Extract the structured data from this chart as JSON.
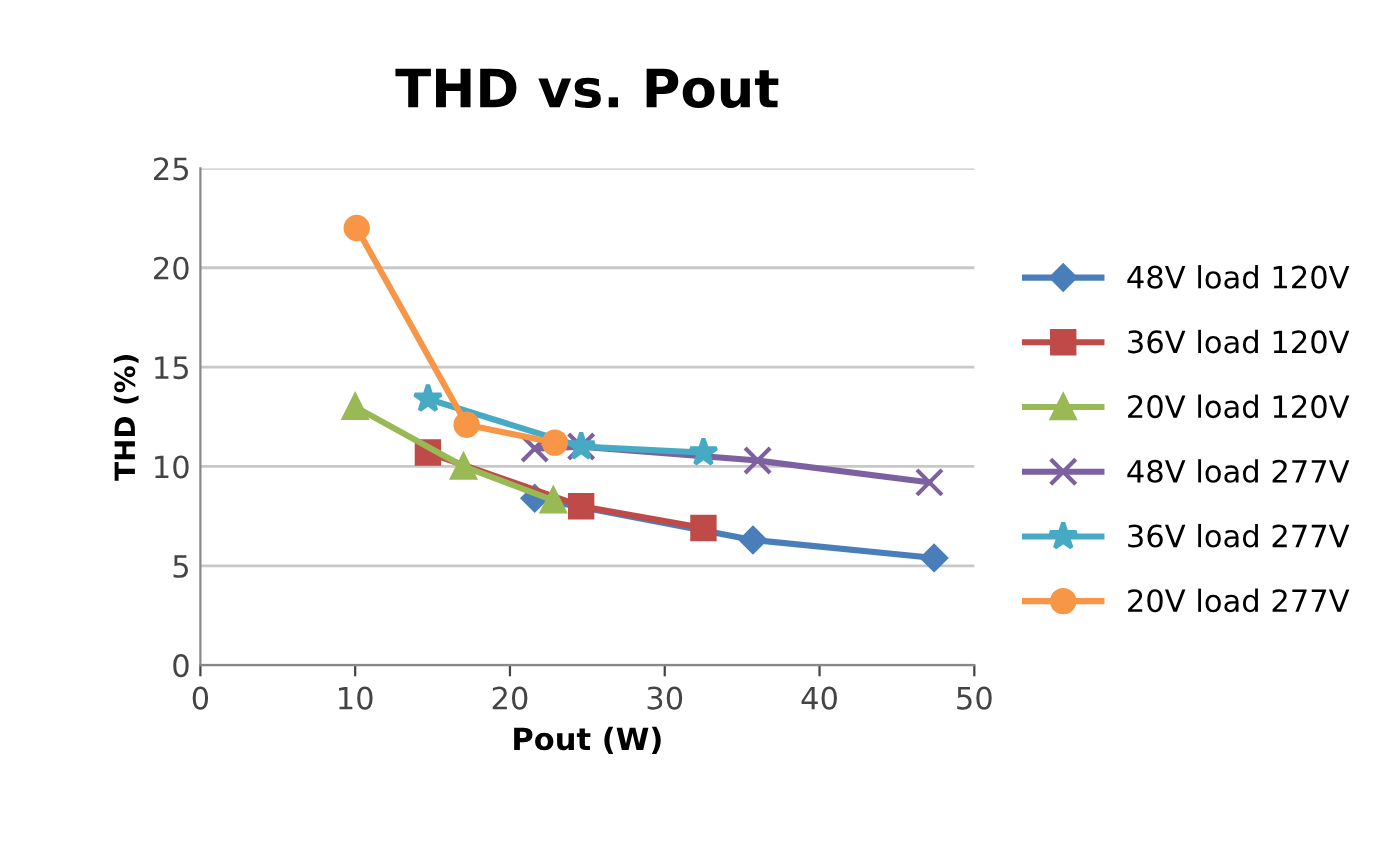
{
  "chart_data": {
    "type": "line",
    "title": "THD vs. Pout",
    "xlabel": "Pout (W)",
    "ylabel": "THD (%)",
    "xlim": [
      0,
      50
    ],
    "xticks": [
      0,
      10,
      20,
      30,
      40,
      50
    ],
    "ylim": [
      0,
      25
    ],
    "yticks": [
      0,
      5,
      10,
      15,
      20,
      25
    ],
    "grid": "y",
    "legend": "right",
    "line_style": "solid",
    "series": [
      {
        "name": "48V load 120V",
        "color": "#4a7ebb",
        "marker": "diamond",
        "x": [
          21.6,
          35.7,
          47.4
        ],
        "values": [
          8.4,
          6.3,
          5.4
        ]
      },
      {
        "name": "36V load 120V",
        "color": "#be4b48",
        "marker": "square",
        "x": [
          14.7,
          24.6,
          32.5
        ],
        "values": [
          10.7,
          8.0,
          6.9
        ]
      },
      {
        "name": "20V load 120V",
        "color": "#98b954",
        "marker": "triangle",
        "x": [
          10.0,
          17.0,
          22.8
        ],
        "values": [
          13.0,
          10.0,
          8.3
        ]
      },
      {
        "name": "48V load 277V",
        "color": "#7d60a0",
        "marker": "cross",
        "x": [
          21.6,
          24.6,
          36.0,
          47.1
        ],
        "values": [
          10.9,
          11.0,
          10.3,
          9.2
        ]
      },
      {
        "name": "36V load 277V",
        "color": "#46aac5",
        "marker": "star",
        "x": [
          14.7,
          24.6,
          32.5
        ],
        "values": [
          13.4,
          11.0,
          10.7
        ]
      },
      {
        "name": "20V load 277V",
        "color": "#f79646",
        "marker": "circle",
        "x": [
          10.1,
          17.2,
          22.9
        ],
        "values": [
          22.0,
          12.1,
          11.2
        ]
      }
    ]
  }
}
